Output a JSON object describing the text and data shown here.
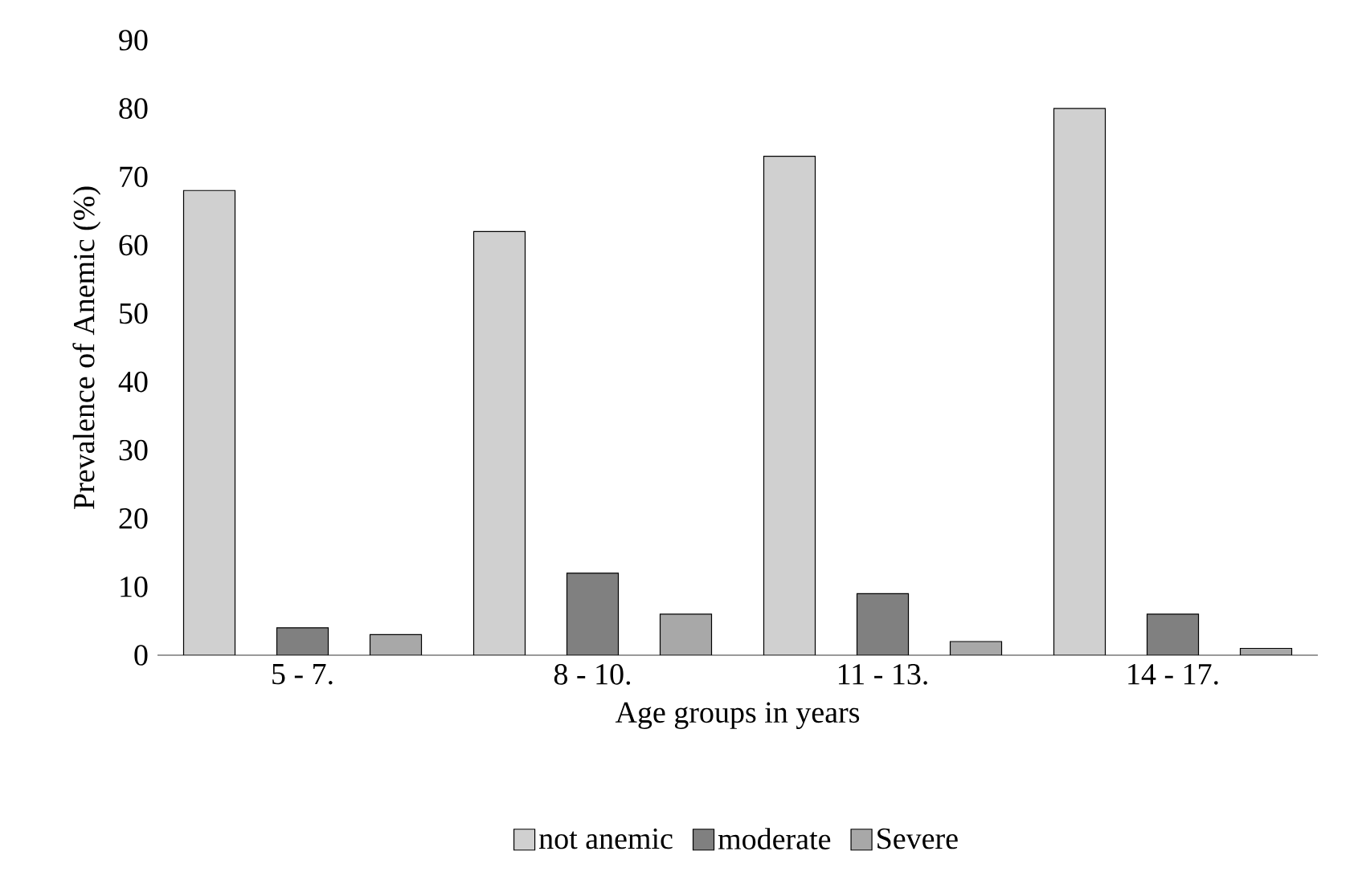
{
  "chart_data": {
    "type": "bar",
    "xlabel": "Age groups in years",
    "ylabel": "Prevalence of Anemic (%)",
    "categories": [
      "5 - 7.",
      "8 - 10.",
      "11 - 13.",
      "14  - 17."
    ],
    "series": [
      {
        "name": "not anemic",
        "color": "#d0d0d0",
        "values": [
          68,
          62,
          73,
          80
        ]
      },
      {
        "name": "moderate",
        "color": "#808080",
        "values": [
          4,
          12,
          9,
          6
        ]
      },
      {
        "name": "Severe",
        "color": "#a8a8a8",
        "values": [
          3,
          6,
          2,
          1
        ]
      }
    ],
    "ylim": [
      0,
      90
    ],
    "yticks": [
      0,
      10,
      20,
      30,
      40,
      50,
      60,
      70,
      80,
      90
    ],
    "grid": false,
    "legend": "bottom"
  }
}
